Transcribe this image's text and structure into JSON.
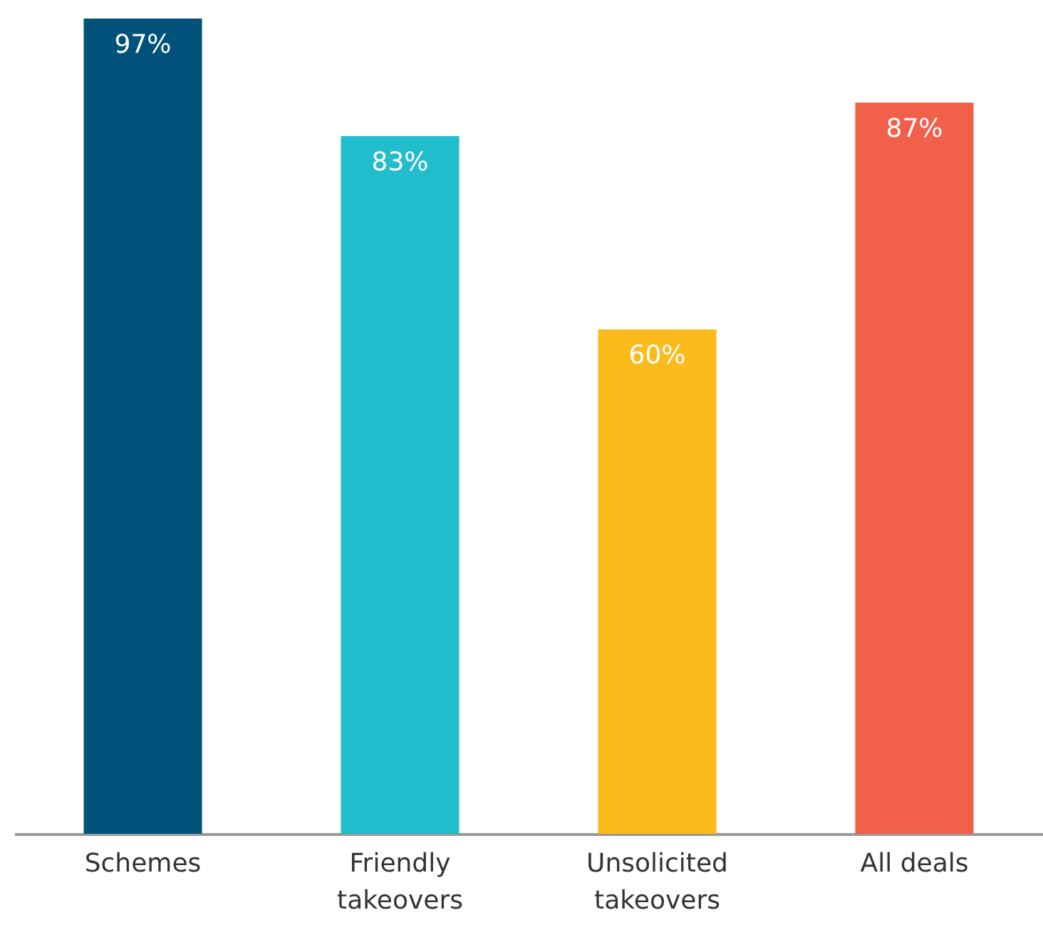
{
  "chart_data": {
    "type": "bar",
    "categories": [
      "Schemes",
      "Friendly takeovers",
      "Unsolicited takeovers",
      "All deals"
    ],
    "values": [
      97,
      83,
      60,
      87
    ],
    "colors": [
      "#00527a",
      "#22bdcc",
      "#fdba1b",
      "#f0604b"
    ],
    "value_labels": [
      "97%",
      "83%",
      "60%",
      "87%"
    ]
  }
}
